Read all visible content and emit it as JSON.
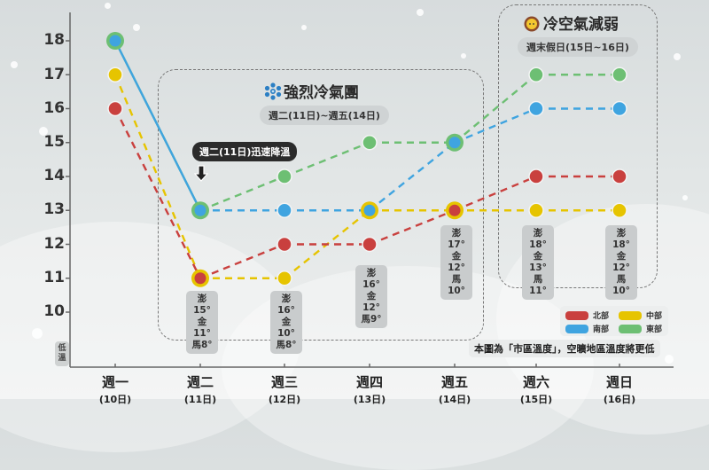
{
  "chart_data": {
    "type": "line",
    "title": "",
    "xlabel": "",
    "ylabel": "低溫",
    "ylim": [
      9,
      18.5
    ],
    "yticks": [
      10,
      11,
      12,
      13,
      14,
      15,
      16,
      17,
      18
    ],
    "categories": [
      "週一",
      "週二",
      "週三",
      "週四",
      "週五",
      "週六",
      "週日"
    ],
    "category_dates": [
      "(10日)",
      "(11日)",
      "(12日)",
      "(13日)",
      "(14日)",
      "(15日)",
      "(16日)"
    ],
    "series": [
      {
        "name": "北部",
        "color": "#c9403e",
        "values": [
          16,
          11,
          12,
          12,
          13,
          14,
          14
        ]
      },
      {
        "name": "中部",
        "color": "#e6c400",
        "values": [
          17,
          11,
          11,
          13,
          13,
          13,
          13
        ]
      },
      {
        "name": "南部",
        "color": "#3fa4e0",
        "values": [
          18,
          13,
          13,
          13,
          15,
          16,
          16
        ]
      },
      {
        "name": "東部",
        "color": "#6dbf73",
        "values": [
          18,
          13,
          14,
          15,
          15,
          17,
          17
        ]
      }
    ],
    "legend_position": "bottom-right",
    "grid": false,
    "annotations": [
      {
        "text": "強烈冷氣團",
        "range": "週二(11日)~週五(14日)"
      },
      {
        "text": "冷空氣減弱",
        "range": "週末假日(15日~16日)"
      },
      {
        "text": "週二(11日)迅速降溫"
      }
    ],
    "island_temps": [
      {
        "day": "週二",
        "澎": "15°",
        "金": "11°",
        "馬": "8°"
      },
      {
        "day": "週三",
        "澎": "16°",
        "金": "10°",
        "馬": "8°"
      },
      {
        "day": "週四",
        "澎": "16°",
        "金": "12°",
        "馬": "9°"
      },
      {
        "day": "週五",
        "澎": "17°",
        "金": "12°",
        "馬": "10°"
      },
      {
        "day": "週六",
        "澎": "18°",
        "金": "13°",
        "馬": "11°"
      },
      {
        "day": "週日",
        "澎": "18°",
        "金": "12°",
        "馬": "10°"
      }
    ],
    "footnote": "本圖為「市區溫度」，空曠地區溫度將更低"
  },
  "axis": {
    "y_ticks": [
      "18",
      "17",
      "16",
      "15",
      "14",
      "13",
      "12",
      "11",
      "10"
    ],
    "y_label": "低溫",
    "x": [
      {
        "day": "週一",
        "date": "(10日)"
      },
      {
        "day": "週二",
        "date": "(11日)"
      },
      {
        "day": "週三",
        "date": "(12日)"
      },
      {
        "day": "週四",
        "date": "(13日)"
      },
      {
        "day": "週五",
        "date": "(14日)"
      },
      {
        "day": "週六",
        "date": "(15日)"
      },
      {
        "day": "週日",
        "date": "(16日)"
      }
    ]
  },
  "cold_box": {
    "title": "強烈冷氣團",
    "range": "週二(11日)~週五(14日)",
    "icon": "snowflake-icon"
  },
  "weaken_box": {
    "title": "冷空氣減弱",
    "range": "週末假日(15日~16日)",
    "icon": "sun-face-icon"
  },
  "callout": {
    "text": "週二(11日)迅速降溫",
    "icon": "arrow-down-icon"
  },
  "islands": [
    {
      "l1": "澎15°",
      "l2": "金11°",
      "l3": "馬8°"
    },
    {
      "l1": "澎16°",
      "l2": "金10°",
      "l3": "馬8°"
    },
    {
      "l1": "澎16°",
      "l2": "金12°",
      "l3": "馬9°"
    },
    {
      "l1": "澎17°",
      "l2": "金12°",
      "l3": "馬10°"
    },
    {
      "l1": "澎18°",
      "l2": "金13°",
      "l3": "馬11°"
    },
    {
      "l1": "澎18°",
      "l2": "金12°",
      "l3": "馬10°"
    }
  ],
  "legend": {
    "north": {
      "label": "北部",
      "color": "#c9403e"
    },
    "central": {
      "label": "中部",
      "color": "#e6c400"
    },
    "south": {
      "label": "南部",
      "color": "#3fa4e0"
    },
    "east": {
      "label": "東部",
      "color": "#6dbf73"
    }
  },
  "note": "本圖為「市區溫度」，空曠地區溫度將更低"
}
